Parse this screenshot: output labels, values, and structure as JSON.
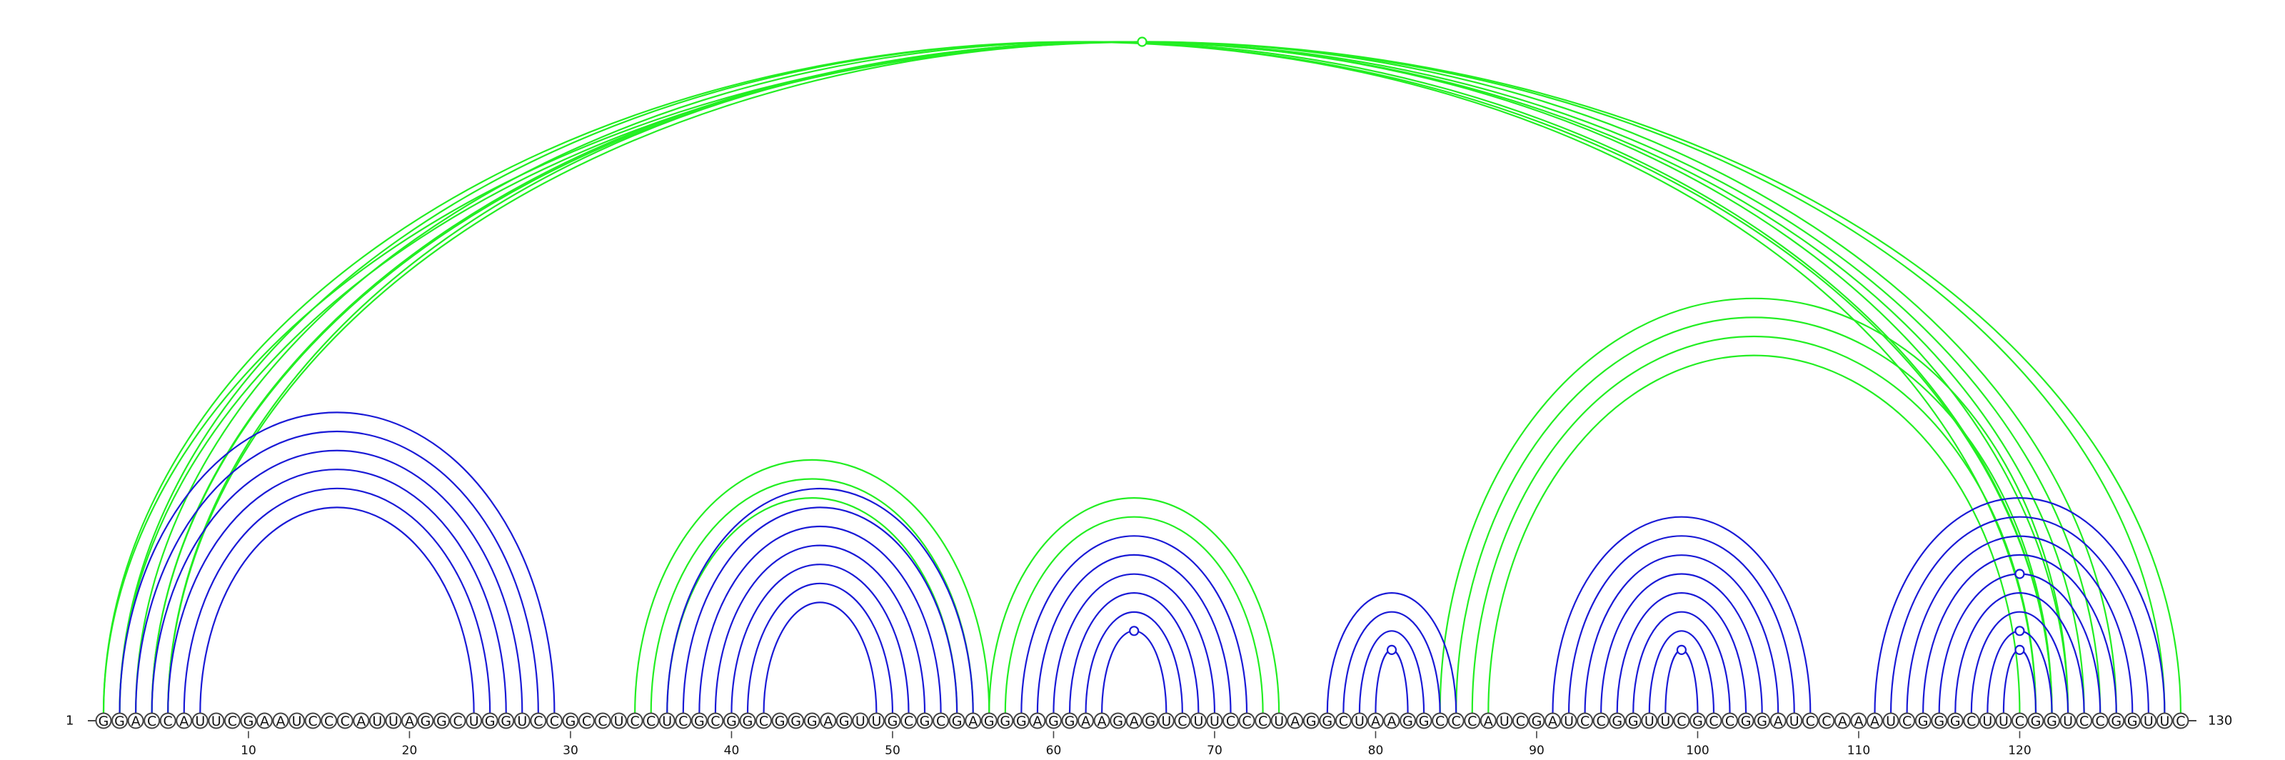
{
  "sequence": "GGACCAUUCGAAUCCCAUUAGGCUGGUCCGCCUCCUCGCGGCGGGAGUUGCGCGAGGGAGGAAGAGUCUUCCCUAGGCUAAGGCCCAUCGAUCCGGUUCGCCGGAUCCAAAUCGGGCUUCGGUCCGGUUC",
  "start_label": "1",
  "end_label": "130",
  "ticks": [
    10,
    20,
    30,
    40,
    50,
    60,
    70,
    80,
    90,
    100,
    110,
    120
  ],
  "colors": {
    "green": "#22ee22",
    "blue": "#1a1ad6"
  },
  "green_pairs": [
    [
      1,
      122
    ],
    [
      1,
      130
    ],
    [
      2,
      121
    ],
    [
      2,
      129
    ],
    [
      3,
      122
    ],
    [
      4,
      124
    ],
    [
      4,
      125
    ],
    [
      5,
      123
    ],
    [
      5,
      126
    ],
    [
      34,
      56
    ],
    [
      35,
      55
    ],
    [
      36,
      54
    ],
    [
      56,
      74
    ],
    [
      57,
      73
    ],
    [
      84,
      123
    ],
    [
      85,
      122
    ],
    [
      86,
      121
    ],
    [
      87,
      120
    ]
  ],
  "blue_pairs": [
    [
      2,
      29
    ],
    [
      3,
      28
    ],
    [
      4,
      27
    ],
    [
      5,
      26
    ],
    [
      6,
      25
    ],
    [
      7,
      24
    ],
    [
      36,
      55
    ],
    [
      37,
      54
    ],
    [
      38,
      53
    ],
    [
      39,
      52
    ],
    [
      40,
      51
    ],
    [
      41,
      50
    ],
    [
      42,
      49
    ],
    [
      58,
      72
    ],
    [
      59,
      71
    ],
    [
      60,
      70
    ],
    [
      61,
      69
    ],
    [
      62,
      68
    ],
    [
      63,
      67
    ],
    [
      77,
      85
    ],
    [
      78,
      84
    ],
    [
      79,
      83
    ],
    [
      80,
      82
    ],
    [
      91,
      107
    ],
    [
      92,
      106
    ],
    [
      93,
      105
    ],
    [
      94,
      104
    ],
    [
      95,
      103
    ],
    [
      96,
      102
    ],
    [
      97,
      101
    ],
    [
      98,
      100
    ],
    [
      111,
      129
    ],
    [
      112,
      128
    ],
    [
      113,
      127
    ],
    [
      114,
      126
    ],
    [
      115,
      125
    ],
    [
      116,
      124
    ],
    [
      117,
      123
    ],
    [
      118,
      122
    ],
    [
      119,
      121
    ]
  ],
  "green_noncanonical": [
    [
      5,
      126
    ]
  ],
  "blue_noncanonical": [
    [
      63,
      67
    ],
    [
      80,
      82
    ],
    [
      98,
      100
    ],
    [
      119,
      121
    ],
    [
      118,
      122
    ],
    [
      115,
      125
    ]
  ]
}
